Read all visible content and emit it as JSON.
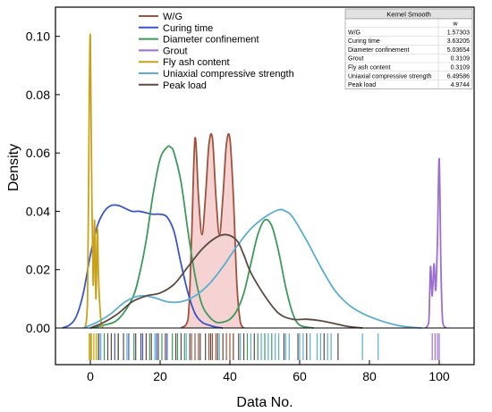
{
  "chart_data": {
    "type": "line",
    "subtype": "kernel-density-with-rug",
    "xlabel": "Data No.",
    "ylabel": "Density",
    "xlim": [
      -10,
      110
    ],
    "ylim": [
      0,
      0.11
    ],
    "x_ticks": [
      0,
      20,
      40,
      60,
      80,
      100
    ],
    "y_ticks": [
      0.0,
      0.02,
      0.04,
      0.06,
      0.08,
      0.1
    ],
    "y_tick_labels": [
      "0.00",
      "0.02",
      "0.04",
      "0.06",
      "0.08",
      "0.10"
    ],
    "grid": false,
    "legend_position": "top-center",
    "series": [
      {
        "name": "W/G",
        "color": "#a0523c",
        "fill": "#f2c4c4",
        "x": [
          26,
          28,
          29,
          30,
          31,
          32,
          33,
          34,
          35,
          36,
          37,
          38,
          39,
          40,
          41,
          42,
          43,
          44
        ],
        "y": [
          0,
          0.003,
          0.03,
          0.065,
          0.045,
          0.032,
          0.045,
          0.063,
          0.065,
          0.045,
          0.032,
          0.045,
          0.063,
          0.065,
          0.045,
          0.015,
          0.002,
          0
        ]
      },
      {
        "name": "Curing time",
        "color": "#3a55c8",
        "x": [
          -8,
          -6,
          -4,
          -2,
          0,
          2,
          4,
          6,
          8,
          10,
          12,
          14,
          16,
          18,
          20,
          22,
          24,
          26,
          28,
          30,
          32,
          34,
          36,
          38
        ],
        "y": [
          0,
          0.001,
          0.004,
          0.012,
          0.025,
          0.035,
          0.04,
          0.042,
          0.042,
          0.041,
          0.04,
          0.04,
          0.0395,
          0.039,
          0.039,
          0.038,
          0.033,
          0.022,
          0.012,
          0.005,
          0.002,
          0.001,
          0.0003,
          0
        ]
      },
      {
        "name": "Diameter confinement",
        "color": "#3d9a5c",
        "x": [
          0,
          4,
          8,
          12,
          14,
          16,
          18,
          20,
          22,
          23,
          24,
          26,
          28,
          30,
          32,
          34,
          36,
          38,
          40,
          42,
          44,
          46,
          48,
          50,
          52,
          54,
          56,
          58,
          60,
          64
        ],
        "y": [
          0,
          0.001,
          0.003,
          0.01,
          0.018,
          0.03,
          0.046,
          0.058,
          0.062,
          0.062,
          0.06,
          0.05,
          0.033,
          0.018,
          0.008,
          0.004,
          0.002,
          0.002,
          0.003,
          0.006,
          0.012,
          0.022,
          0.032,
          0.037,
          0.035,
          0.026,
          0.014,
          0.005,
          0.001,
          0
        ]
      },
      {
        "name": "Grout",
        "color": "#9b6ed0",
        "x": [
          96,
          97,
          97.5,
          98,
          98.5,
          99,
          99.5,
          100,
          100.5,
          101,
          102
        ],
        "y": [
          0,
          0.002,
          0.021,
          0.011,
          0.022,
          0.013,
          0.03,
          0.058,
          0.02,
          0.002,
          0
        ]
      },
      {
        "name": "Fly ash content",
        "color": "#c9a21a",
        "x": [
          -1.5,
          -0.8,
          -0.3,
          0,
          0.3,
          0.8,
          1.2,
          1.6,
          2,
          2.3,
          2.7,
          3.1,
          3.6
        ],
        "y": [
          0,
          0.01,
          0.08,
          0.1,
          0.06,
          0.015,
          0.037,
          0.01,
          0.034,
          0.019,
          0.008,
          0.002,
          0
        ]
      },
      {
        "name": "Uniaxial compressive strength",
        "color": "#5aaed0",
        "x": [
          -2,
          2,
          6,
          10,
          14,
          18,
          22,
          26,
          30,
          34,
          38,
          42,
          46,
          50,
          54,
          56,
          58,
          62,
          66,
          70,
          74,
          78,
          82,
          86,
          90,
          95
        ],
        "y": [
          0,
          0.002,
          0.005,
          0.009,
          0.011,
          0.0105,
          0.009,
          0.009,
          0.011,
          0.015,
          0.021,
          0.028,
          0.034,
          0.038,
          0.0405,
          0.04,
          0.038,
          0.03,
          0.021,
          0.013,
          0.008,
          0.005,
          0.003,
          0.0015,
          0.0005,
          0
        ]
      },
      {
        "name": "Peak load",
        "color": "#5a4a42",
        "x": [
          0,
          4,
          8,
          12,
          16,
          20,
          24,
          28,
          32,
          36,
          39,
          42,
          44,
          46,
          50,
          54,
          58,
          62,
          66,
          70,
          74,
          78
        ],
        "y": [
          0,
          0.002,
          0.005,
          0.009,
          0.011,
          0.012,
          0.015,
          0.021,
          0.027,
          0.031,
          0.032,
          0.03,
          0.025,
          0.019,
          0.011,
          0.005,
          0.003,
          0.003,
          0.0025,
          0.0015,
          0.0005,
          0
        ]
      }
    ],
    "rug": [
      {
        "series": "Fly ash content",
        "color": "#c9a21a",
        "x": [
          -0.3,
          0,
          0.3,
          1,
          1.7,
          2.2
        ]
      },
      {
        "series": "Curing time",
        "color": "#3a55c8",
        "x": [
          2.5,
          7,
          11,
          15,
          19,
          22
        ]
      },
      {
        "series": "Diameter confinement",
        "color": "#3d9a5c",
        "x": [
          4,
          8,
          12.5,
          17,
          20.5,
          23.5,
          25,
          27,
          45,
          48,
          50,
          52
        ]
      },
      {
        "series": "Peak load",
        "color": "#5a4a42",
        "x": [
          5,
          6,
          8,
          9.5,
          13,
          14.5,
          16,
          17.5,
          19.5,
          21.5,
          24.5,
          26,
          28.5,
          31.5,
          33,
          34.5,
          36.5,
          38,
          41,
          42.5,
          44,
          47,
          55.5,
          59.5,
          62,
          67,
          71
        ]
      },
      {
        "series": "W/G",
        "color": "#a0523c",
        "x": [
          29,
          30,
          31,
          34,
          35,
          36,
          39,
          40,
          41
        ]
      },
      {
        "series": "Uniaxial compressive strength",
        "color": "#5aaed0",
        "x": [
          3,
          10.5,
          18.5,
          27.5,
          37,
          43,
          46,
          49,
          51,
          53,
          54,
          56,
          57,
          60,
          61,
          63,
          65,
          66,
          68,
          69,
          78,
          82.5
        ]
      },
      {
        "series": "Grout",
        "color": "#9b6ed0",
        "x": [
          98,
          98.8,
          99.5,
          100
        ]
      }
    ],
    "table": {
      "title": "Kernel Smooth",
      "column_header": "w",
      "rows": [
        {
          "label": "W/G",
          "value": "1.57303"
        },
        {
          "label": "Curing time",
          "value": "3.63205"
        },
        {
          "label": "Diameter confinement",
          "value": "5.03654"
        },
        {
          "label": "Grout",
          "value": "0.3109"
        },
        {
          "label": "Fly ash content",
          "value": "0.3109"
        },
        {
          "label": "Uniaxial compressive strength",
          "value": "6.49586"
        },
        {
          "label": "Peak load",
          "value": "4.9744"
        }
      ]
    }
  }
}
